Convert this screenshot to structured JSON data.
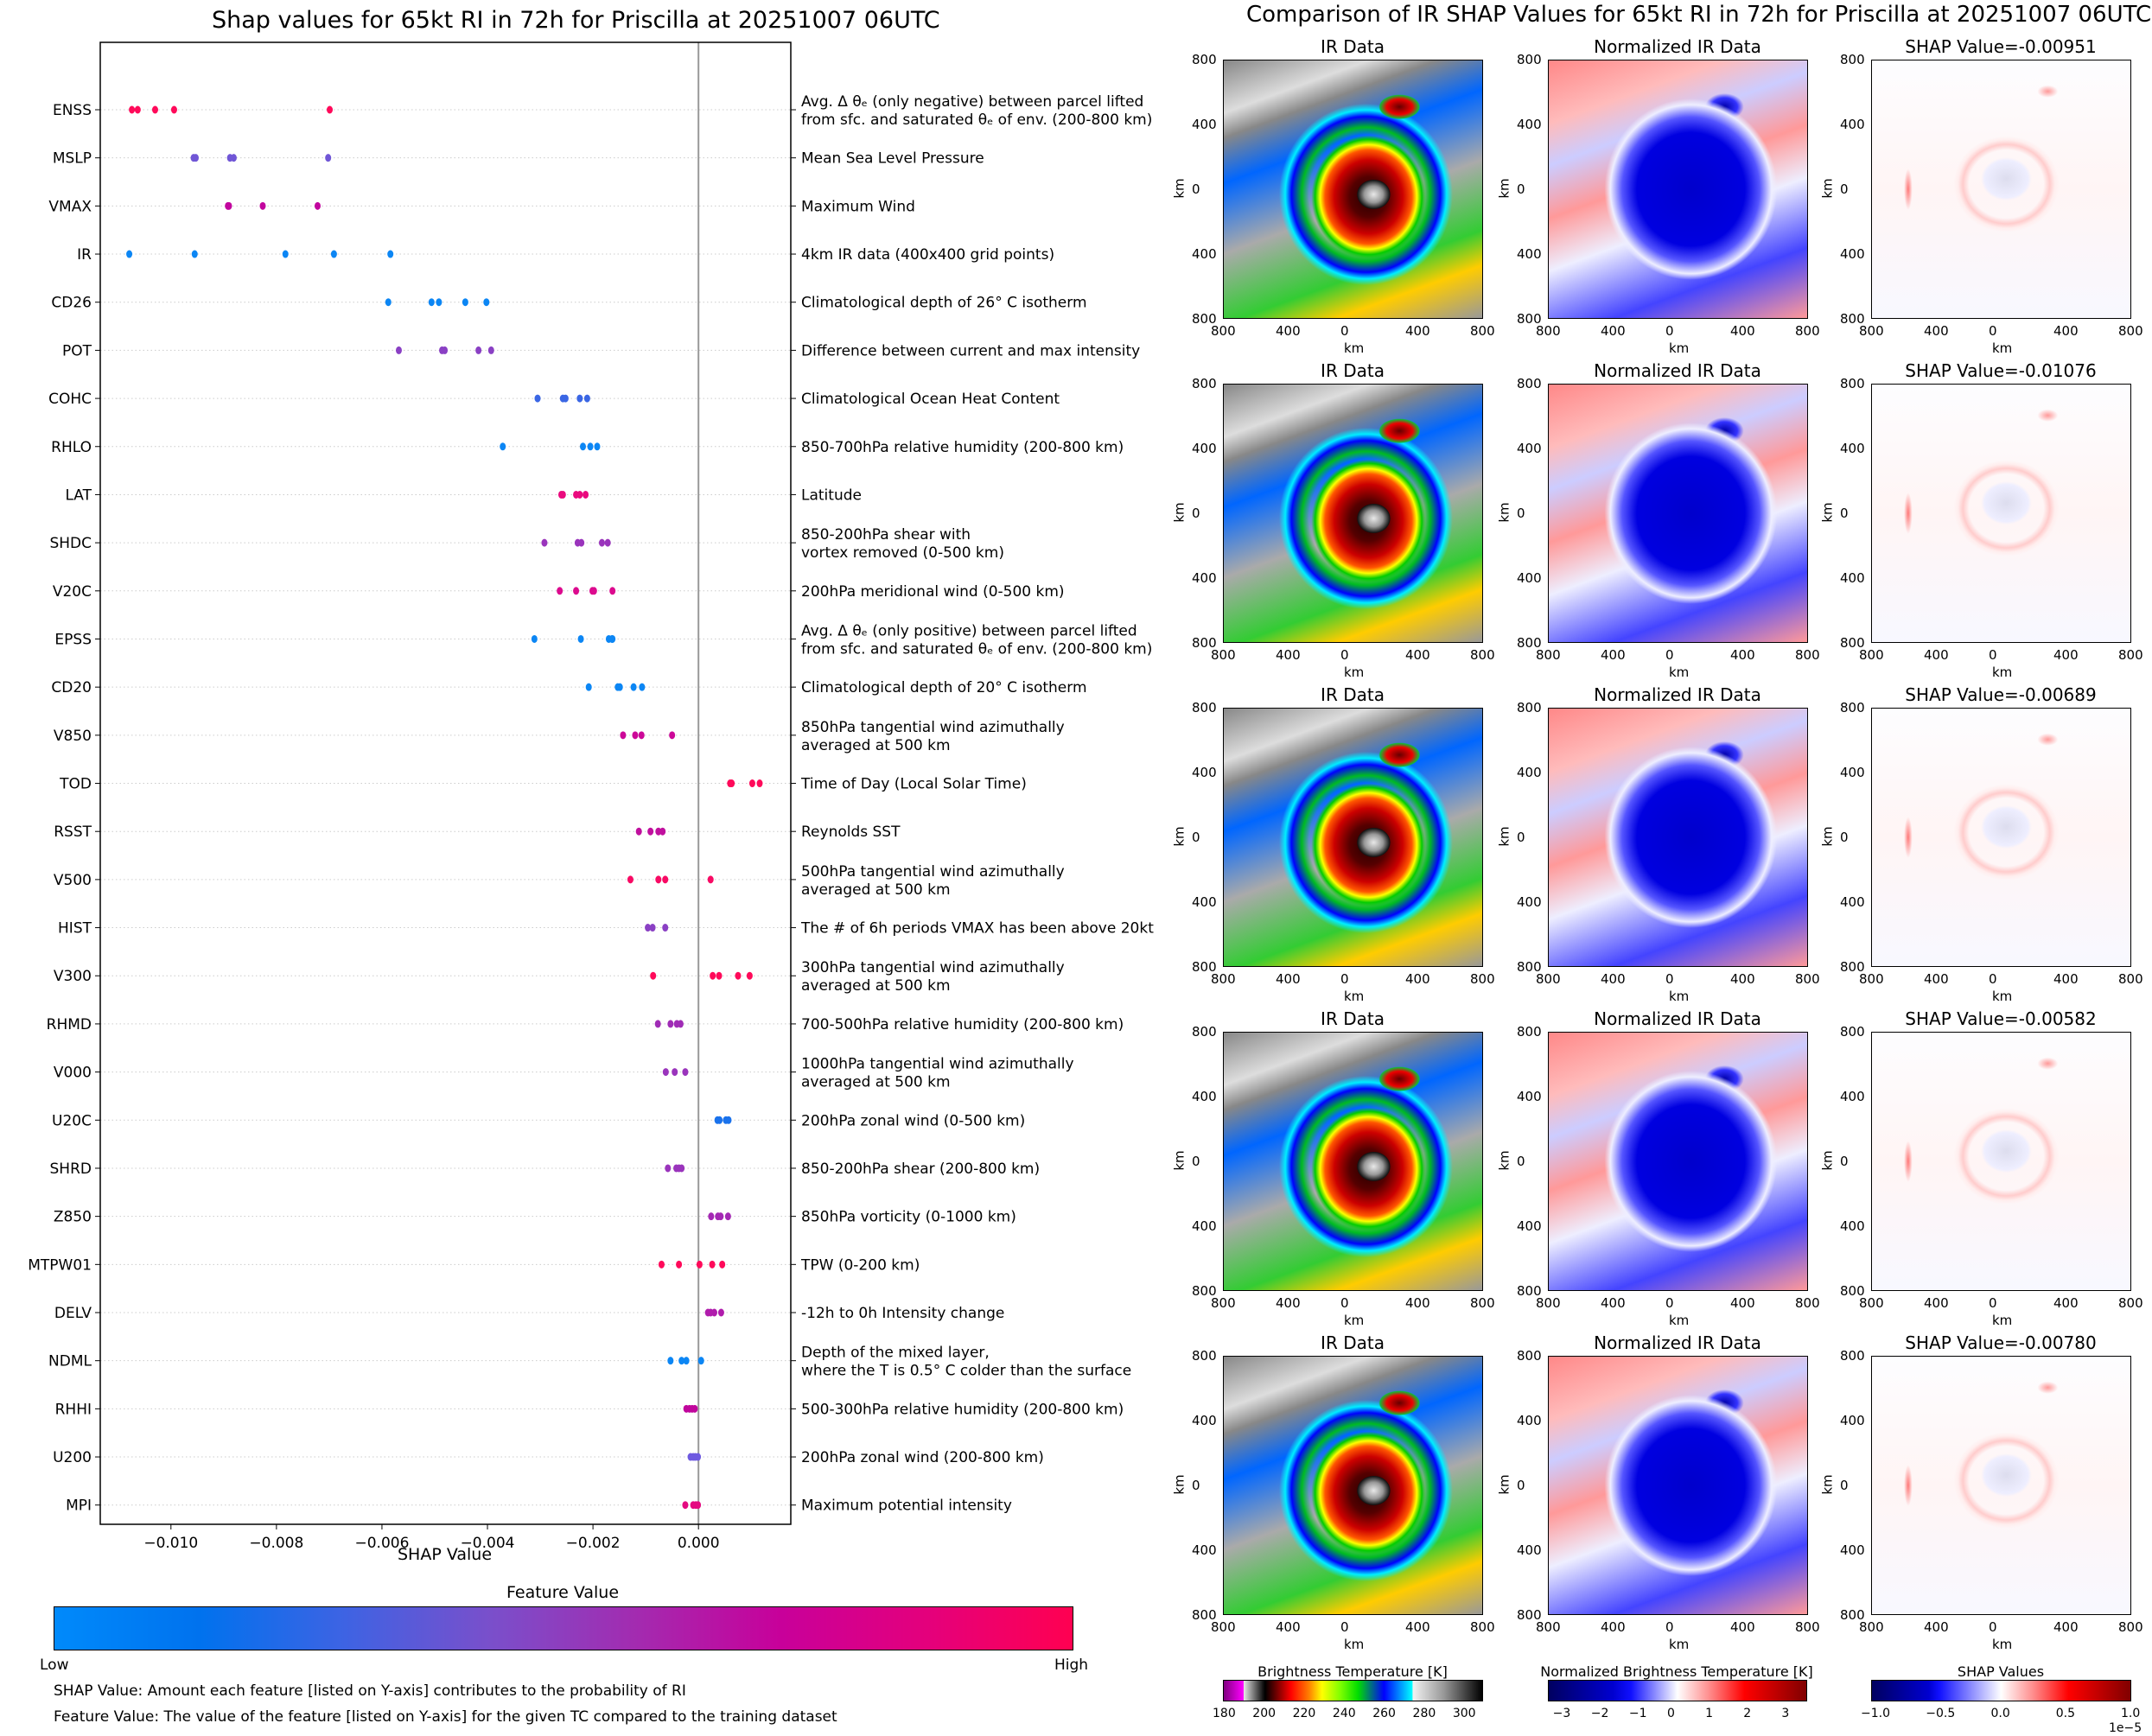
{
  "chart_data": [
    {
      "type": "scatter",
      "subtype": "beeswarm",
      "title": "Shap values for 65kt RI in 72h for Priscilla at 20251007 06UTC",
      "xlabel": "SHAP Value",
      "ylabel": "",
      "xlim": [
        -0.01134,
        0.00175
      ],
      "xticks": [
        -0.01,
        -0.008,
        -0.006,
        -0.004,
        -0.002,
        0.0
      ],
      "xtick_labels": [
        "−0.010",
        "−0.008",
        "−0.006",
        "−0.004",
        "−0.002",
        "0.000"
      ],
      "zero_line": 0.0,
      "grid": "horizontal dotted",
      "colorbar": {
        "title": "Feature Value",
        "low_label": "Low",
        "high_label": "High",
        "colors": [
          "#008afb",
          "#0072ee",
          "#3e63e3",
          "#7a4fcb",
          "#a32bb0",
          "#c8009a",
          "#e4007c",
          "#ff0051"
        ]
      },
      "series": [
        {
          "feature": "ENSS",
          "description": "Avg. Δ θₑ (only negative) between parcel lifted\nfrom sfc. and saturated θₑ of env. (200-800 km)",
          "color": "#ff0a5a",
          "values": [
            -0.01074,
            -0.01063,
            -0.0103,
            -0.00994,
            -0.00699
          ]
        },
        {
          "feature": "MSLP",
          "description": "Mean Sea Level Pressure",
          "color": "#7056d6",
          "values": [
            -0.00957,
            -0.00953,
            -0.00888,
            -0.00881,
            -0.00702
          ]
        },
        {
          "feature": "VMAX",
          "description": "Maximum Wind",
          "color": "#c2069e",
          "values": [
            -0.00892,
            -0.0089,
            -0.00826,
            -0.00722
          ]
        },
        {
          "feature": "IR",
          "description": "4km IR data (400x400 grid points)",
          "color": "#0c86f4",
          "values": [
            -0.01079,
            -0.00955,
            -0.00783,
            -0.00691,
            -0.00584
          ]
        },
        {
          "feature": "CD26",
          "description": "Climatological depth of 26° C isotherm",
          "color": "#0c86f4",
          "values": [
            -0.00588,
            -0.00506,
            -0.00492,
            -0.00442,
            -0.00402
          ]
        },
        {
          "feature": "POT",
          "description": "Difference between current and max intensity",
          "color": "#8a40c4",
          "values": [
            -0.00568,
            -0.00486,
            -0.00481,
            -0.00417,
            -0.00393
          ]
        },
        {
          "feature": "COHC",
          "description": "Climatological Ocean Heat Content",
          "color": "#3a66e4",
          "values": [
            -0.00305,
            -0.00257,
            -0.00252,
            -0.00225,
            -0.00211
          ]
        },
        {
          "feature": "RHLO",
          "description": "850-700hPa relative humidity (200-800 km)",
          "color": "#0c86f4",
          "values": [
            -0.00371,
            -0.00219,
            -0.00205,
            -0.00192
          ]
        },
        {
          "feature": "LAT",
          "description": "Latitude",
          "color": "#ea0a7e",
          "values": [
            -0.0026,
            -0.00257,
            -0.00232,
            -0.00225,
            -0.00214
          ]
        },
        {
          "feature": "SHDC",
          "description": "850-200hPa shear with\nvortex removed (0-500 km)",
          "color": "#9a34bc",
          "values": [
            -0.00292,
            -0.00229,
            -0.00222,
            -0.00183,
            -0.00172
          ]
        },
        {
          "feature": "V20C",
          "description": "200hPa meridional wind (0-500 km)",
          "color": "#dc0a8e",
          "values": [
            -0.00263,
            -0.00232,
            -0.00201,
            -0.00198,
            -0.00163
          ]
        },
        {
          "feature": "EPSS",
          "description": "Avg. Δ θₑ (only positive) between parcel lifted\nfrom sfc. and saturated θₑ of env. (200-800 km)",
          "color": "#0c86f4",
          "values": [
            -0.00311,
            -0.00223,
            -0.0017,
            -0.00164,
            -0.00163
          ]
        },
        {
          "feature": "CD20",
          "description": "Climatological depth of 20° C isotherm",
          "color": "#0c86f4",
          "values": [
            -0.00208,
            -0.00153,
            -0.00149,
            -0.00123,
            -0.00107
          ]
        },
        {
          "feature": "V850",
          "description": "850hPa tangential wind azimuthally\naveraged at 500 km",
          "color": "#cc0898",
          "values": [
            -0.00143,
            -0.0012,
            -0.00108,
            -0.0005
          ]
        },
        {
          "feature": "TOD",
          "description": "Time of Day (Local Solar Time)",
          "color": "#ff0a5a",
          "values": [
            0.0006,
            0.00063,
            0.00102,
            0.00116
          ]
        },
        {
          "feature": "RSST",
          "description": "Reynolds SST",
          "color": "#c0109e",
          "values": [
            -0.00113,
            -0.00091,
            -0.00076,
            -0.00068
          ]
        },
        {
          "feature": "V500",
          "description": "500hPa tangential wind azimuthally\naveraged at 500 km",
          "color": "#f80a64",
          "values": [
            -0.00129,
            -0.00076,
            -0.00063,
            0.00023
          ]
        },
        {
          "feature": "HIST",
          "description": "The # of 6h periods VMAX has been above 20kt",
          "color": "#8a40c4",
          "values": [
            -0.00096,
            -0.00087,
            -0.00063
          ]
        },
        {
          "feature": "V300",
          "description": "300hPa tangential wind azimuthally\naveraged at 500 km",
          "color": "#ff0a5a",
          "values": [
            -0.00086,
            0.00027,
            0.00039,
            0.00075,
            0.00097
          ]
        },
        {
          "feature": "RHMD",
          "description": "700-500hPa relative humidity (200-800 km)",
          "color": "#a02cb6",
          "values": [
            -0.00077,
            -0.00053,
            -0.00041,
            -0.00034
          ]
        },
        {
          "feature": "V000",
          "description": "1000hPa tangential wind azimuthally\naveraged at 500 km",
          "color": "#9a34bc",
          "values": [
            -0.00062,
            -0.00045,
            -0.00025
          ]
        },
        {
          "feature": "U20C",
          "description": "200hPa zonal wind (0-500 km)",
          "color": "#1a72ec",
          "values": [
            0.00036,
            0.0004,
            0.00052,
            0.00057
          ]
        },
        {
          "feature": "SHRD",
          "description": "850-200hPa shear (200-800 km)",
          "color": "#9a34bc",
          "values": [
            -0.00058,
            -0.00042,
            -0.00037,
            -0.00032
          ]
        },
        {
          "feature": "Z850",
          "description": "850hPa vorticity (0-1000 km)",
          "color": "#a428b4",
          "values": [
            0.00024,
            0.00037,
            0.00042,
            0.00056
          ]
        },
        {
          "feature": "MTPW01",
          "description": "TPW (0-200 km)",
          "color": "#ff0a5a",
          "values": [
            -0.0007,
            -0.00037,
            2e-05,
            0.00026,
            0.00045
          ]
        },
        {
          "feature": "DELV",
          "description": "-12h to 0h Intensity change",
          "color": "#b01cac",
          "values": [
            0.00018,
            0.00023,
            0.0003,
            0.00043
          ]
        },
        {
          "feature": "NDML",
          "description": "Depth of the mixed layer,\nwhere the T is 0.5° C colder than the surface",
          "color": "#0c86f4",
          "values": [
            -0.00053,
            -0.00032,
            -0.00023,
            5e-05
          ]
        },
        {
          "feature": "RHHI",
          "description": "500-300hPa relative humidity (200-800 km)",
          "color": "#c0069c",
          "values": [
            -0.00023,
            -0.00017,
            -0.00012,
            -7e-05
          ]
        },
        {
          "feature": "U200",
          "description": "200hPa zonal wind (200-800 km)",
          "color": "#6e5ae0",
          "values": [
            -0.00015,
            -0.0001,
            -6e-05,
            -1e-05
          ]
        },
        {
          "feature": "MPI",
          "description": "Maximum potential intensity",
          "color": "#e40a80",
          "values": [
            -0.00025,
            -0.0001,
            -5e-05,
            -1e-05
          ]
        }
      ]
    },
    {
      "type": "heatmap",
      "title": "Comparison of IR SHAP Values for 65kt RI in 72h for Priscilla at 20251007 06UTC",
      "column_titles": [
        "IR Data",
        "Normalized IR Data"
      ],
      "shap_titles": [
        "SHAP Value=-0.00951",
        "SHAP Value=-0.01076",
        "SHAP Value=-0.00689",
        "SHAP Value=-0.00582",
        "SHAP Value=-0.00780"
      ],
      "shap_values": [
        -0.00951,
        -0.01076,
        -0.00689,
        -0.00582,
        -0.0078
      ],
      "axis_label": "km",
      "axis_tick_labels": [
        "800",
        "400",
        "0",
        "400",
        "800"
      ],
      "colorbars": [
        {
          "title": "Brightness Temperature [K]",
          "range": [
            180,
            310
          ],
          "ticks": [
            "180",
            "200",
            "220",
            "240",
            "260",
            "280",
            "300"
          ]
        },
        {
          "title": "Normalized Brightness Temperature [K]",
          "range": [
            -3.4,
            3.4
          ],
          "ticks": [
            "−3",
            "−2",
            "−1",
            "0",
            "1",
            "2",
            "3"
          ]
        },
        {
          "title": "SHAP Values",
          "range": [
            -1.0,
            1.0
          ],
          "ticks": [
            "−1.0",
            "−0.5",
            "0.0",
            "0.5",
            "1.0"
          ],
          "multiplier": "1e−5"
        }
      ]
    }
  ],
  "footnotes": {
    "shap": "SHAP Value: Amount each feature [listed on Y-axis] contributes to the probability of RI",
    "feature": "Feature Value: The value of the feature [listed on Y-axis] for the given TC compared to the training dataset"
  }
}
